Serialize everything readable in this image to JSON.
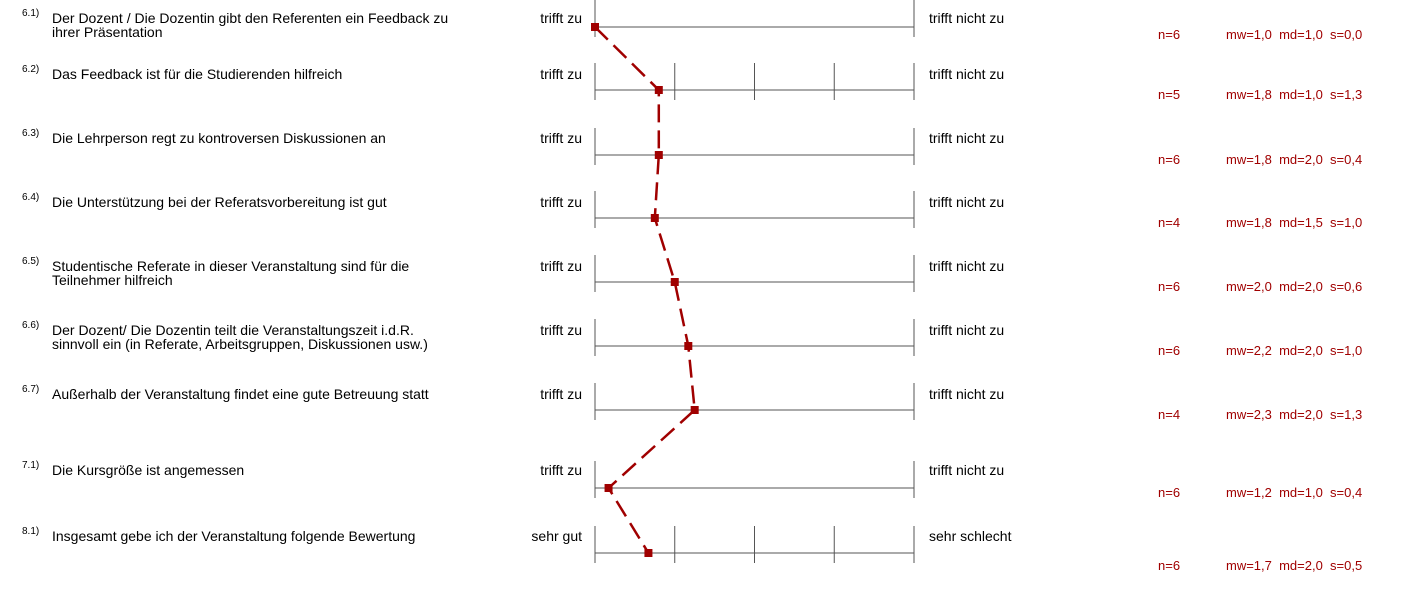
{
  "colors": {
    "line": "#a00000",
    "axis": "#555555",
    "stats": "#a00000"
  },
  "chart_data": {
    "type": "line",
    "scale": {
      "min": 1,
      "max": 5,
      "tick_values": [
        1,
        2,
        3,
        4,
        5
      ]
    },
    "items": [
      {
        "num": "6.1)",
        "question": "Der Dozent / Die Dozentin gibt den Referenten ein Feedback zu ihrer Präsentation",
        "left": "trifft zu",
        "right": "trifft nicht zu",
        "n": "n=6",
        "stats": "mw=1,0  md=1,0  s=0,0",
        "mean": 1.0,
        "ticks": false
      },
      {
        "num": "6.2)",
        "question": "Das Feedback ist für die Studierenden hilfreich",
        "left": "trifft zu",
        "right": "trifft nicht zu",
        "n": "n=5",
        "stats": "mw=1,8  md=1,0  s=1,3",
        "mean": 1.8,
        "ticks": true
      },
      {
        "num": "6.3)",
        "question": "Die Lehrperson regt zu kontroversen Diskussionen an",
        "left": "trifft zu",
        "right": "trifft nicht zu",
        "n": "n=6",
        "stats": "mw=1,8  md=2,0  s=0,4",
        "mean": 1.8,
        "ticks": false
      },
      {
        "num": "6.4)",
        "question": "Die Unterstützung bei der Referatsvorbereitung ist gut",
        "left": "trifft zu",
        "right": "trifft nicht zu",
        "n": "n=4",
        "stats": "mw=1,8  md=1,5  s=1,0",
        "mean": 1.75,
        "ticks": false
      },
      {
        "num": "6.5)",
        "question": "Studentische Referate in dieser Veranstaltung sind für die Teilnehmer hilfreich",
        "left": "trifft zu",
        "right": "trifft nicht zu",
        "n": "n=6",
        "stats": "mw=2,0  md=2,0  s=0,6",
        "mean": 2.0,
        "ticks": false
      },
      {
        "num": "6.6)",
        "question": "Der Dozent/ Die Dozentin teilt die Veranstaltungszeit i.d.R. sinnvoll ein (in Referate, Arbeitsgruppen, Diskussionen usw.)",
        "left": "trifft zu",
        "right": "trifft nicht zu",
        "n": "n=6",
        "stats": "mw=2,2  md=2,0  s=1,0",
        "mean": 2.17,
        "ticks": false
      },
      {
        "num": "6.7)",
        "question": "Außerhalb der Veranstaltung findet eine gute Betreuung statt",
        "left": "trifft zu",
        "right": "trifft nicht zu",
        "n": "n=4",
        "stats": "mw=2,3  md=2,0  s=1,3",
        "mean": 2.25,
        "ticks": false
      },
      {
        "num": "7.1)",
        "question": "Die Kursgröße ist angemessen",
        "left": "trifft zu",
        "right": "trifft nicht zu",
        "n": "n=6",
        "stats": "mw=1,2  md=1,0  s=0,4",
        "mean": 1.17,
        "ticks": false
      },
      {
        "num": "8.1)",
        "question": "Insgesamt gebe ich der Veranstaltung folgende Bewertung",
        "left": "sehr gut",
        "right": "sehr schlecht",
        "n": "n=6",
        "stats": "mw=1,7  md=2,0  s=0,5",
        "mean": 1.67,
        "ticks": true
      }
    ]
  }
}
